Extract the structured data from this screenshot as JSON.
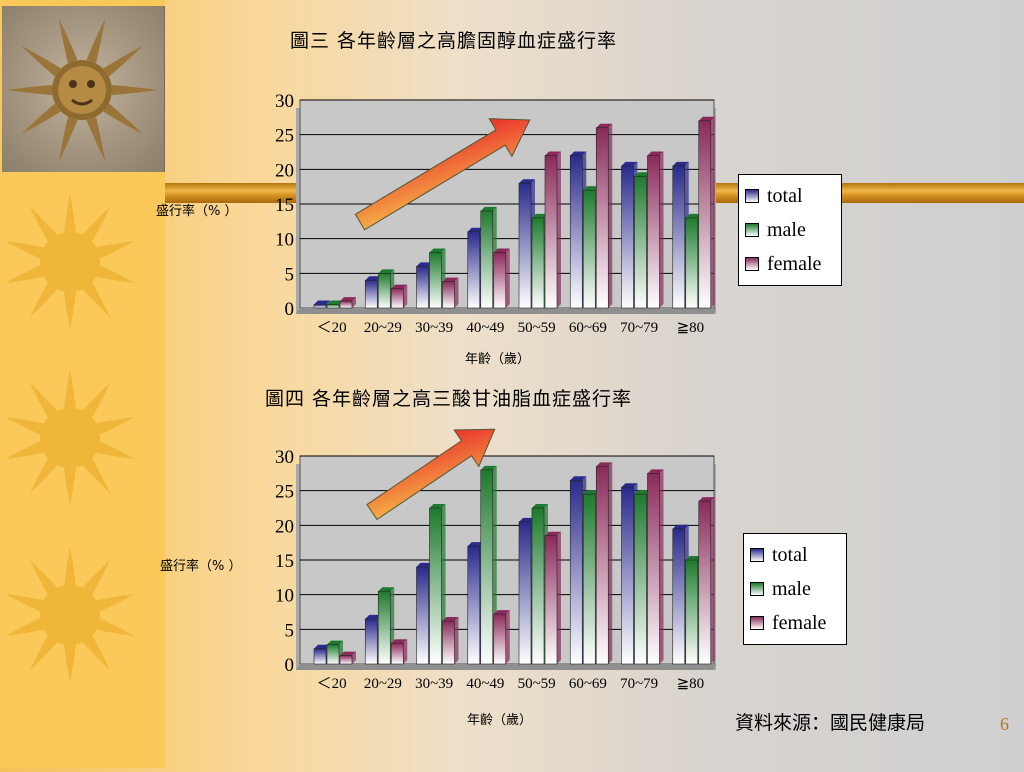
{
  "colors": {
    "total": "#2a2a8c",
    "male": "#1e7a2e",
    "female": "#8a2a5a",
    "plot_bg": "#c8c8c8",
    "arrow_start": "#f7c54a",
    "arrow_end": "#e8242a"
  },
  "decor": {
    "photo_icon": "sun-face-photo-icon",
    "sun_icons": [
      "sun-icon",
      "sun-icon",
      "sun-icon",
      "sun-icon"
    ]
  },
  "chart_data": [
    {
      "type": "bar",
      "title": "圖三  各年齡層之高膽固醇血症盛行率",
      "xlabel": "年齡（歲）",
      "ylabel": "盛行率（% ）",
      "ylim": [
        0,
        30
      ],
      "yticks": [
        0,
        5,
        10,
        15,
        20,
        25,
        30
      ],
      "categories": [
        "＜20",
        "20~29",
        "30~39",
        "40~49",
        "50~59",
        "60~69",
        "70~79",
        "≧80"
      ],
      "series": [
        {
          "name": "total",
          "values": [
            0.5,
            4,
            6,
            11,
            18,
            22,
            20.5,
            20.5
          ]
        },
        {
          "name": "male",
          "values": [
            0.5,
            5,
            8,
            14,
            13,
            17,
            19,
            13
          ]
        },
        {
          "name": "female",
          "values": [
            1,
            2.8,
            3.8,
            8,
            22,
            26,
            22,
            27
          ]
        }
      ],
      "legend": "right",
      "grid": true
    },
    {
      "type": "bar",
      "title": "圖四  各年齡層之高三酸甘油脂血症盛行率",
      "xlabel": "年齡（歲）",
      "ylabel": "盛行率（% ）",
      "ylim": [
        0,
        30
      ],
      "yticks": [
        0,
        5,
        10,
        15,
        20,
        25,
        30
      ],
      "categories": [
        "＜20",
        "20~29",
        "30~39",
        "40~49",
        "50~59",
        "60~69",
        "70~79",
        "≧80"
      ],
      "series": [
        {
          "name": "total",
          "values": [
            2.2,
            6.5,
            14,
            17,
            20.5,
            26.5,
            25.5,
            19.5
          ]
        },
        {
          "name": "male",
          "values": [
            2.8,
            10.5,
            22.5,
            28,
            22.5,
            24.5,
            24.5,
            15
          ]
        },
        {
          "name": "female",
          "values": [
            1.2,
            3,
            6.2,
            7.2,
            18.5,
            28.5,
            27.5,
            23.5
          ]
        }
      ],
      "legend": "right",
      "grid": true
    }
  ],
  "source_text": "資料來源：國民健康局",
  "page_number": "6"
}
